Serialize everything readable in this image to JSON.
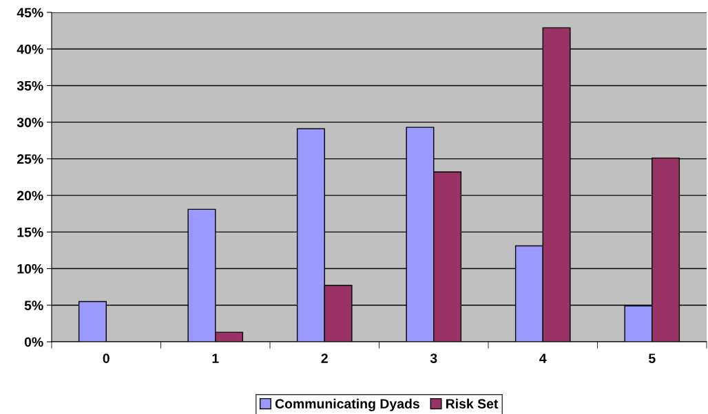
{
  "chart_data": {
    "type": "bar",
    "categories": [
      "0",
      "1",
      "2",
      "3",
      "4",
      "5"
    ],
    "series": [
      {
        "name": "Communicating Dyads",
        "color": "#9999ff",
        "values": [
          5.5,
          18.1,
          29.1,
          29.3,
          13.1,
          4.9
        ]
      },
      {
        "name": "Risk Set",
        "color": "#993366",
        "values": [
          0,
          1.3,
          7.7,
          23.2,
          42.9,
          25.1
        ]
      }
    ],
    "ylim": [
      0,
      45
    ],
    "yticks": [
      {
        "value": 0,
        "label": "0%"
      },
      {
        "value": 5,
        "label": "5%"
      },
      {
        "value": 10,
        "label": "10%"
      },
      {
        "value": 15,
        "label": "15%"
      },
      {
        "value": 20,
        "label": "20%"
      },
      {
        "value": 25,
        "label": "25%"
      },
      {
        "value": 30,
        "label": "30%"
      },
      {
        "value": 35,
        "label": "35%"
      },
      {
        "value": 40,
        "label": "40%"
      },
      {
        "value": 45,
        "label": "45%"
      }
    ],
    "grid": "y",
    "legend": "bottom"
  }
}
